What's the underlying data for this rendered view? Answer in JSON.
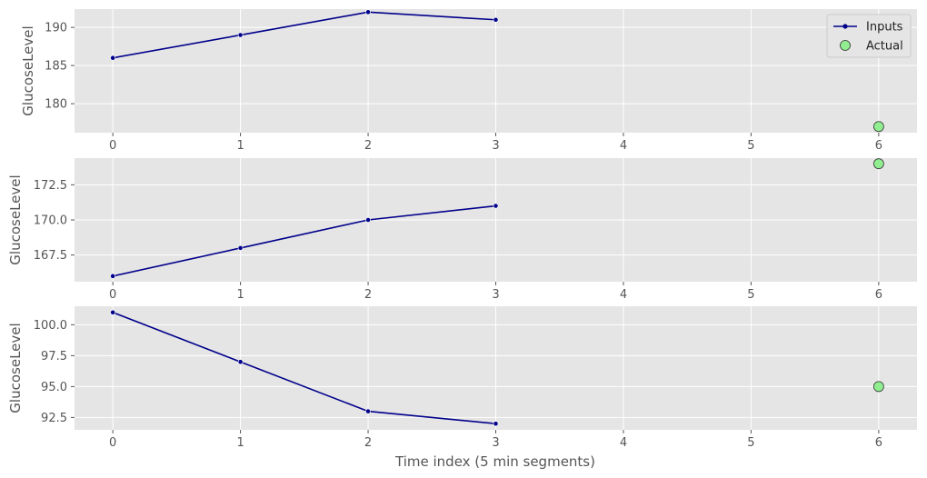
{
  "chart_data": {
    "type": "line",
    "xlabel": "Time index (5 min segments)",
    "xlim": [
      -0.3,
      6.3
    ],
    "x_ticks": [
      0,
      1,
      2,
      3,
      4,
      5,
      6
    ],
    "legend": {
      "placement": "top-right",
      "entries": [
        {
          "label": "Inputs",
          "kind": "line-marker"
        },
        {
          "label": "Actual",
          "kind": "scatter"
        }
      ]
    },
    "colors": {
      "plot_bg": "#e5e5e5",
      "grid": "#ffffff",
      "inputs_line": "#00008b",
      "actual_fill": "#90ee90",
      "actual_edge": "#333333"
    },
    "grid": true,
    "panels": [
      {
        "ylabel": "GlucoseLevel",
        "ylim": [
          176.2,
          192.4
        ],
        "y_ticks": [
          180,
          185,
          190
        ],
        "inputs": {
          "x": [
            0,
            1,
            2,
            3
          ],
          "y": [
            186,
            189,
            192,
            191
          ]
        },
        "actual": {
          "x": [
            6
          ],
          "y": [
            177
          ]
        }
      },
      {
        "ylabel": "GlucoseLevel",
        "ylim": [
          165.6,
          174.4
        ],
        "y_ticks": [
          167.5,
          170.0,
          172.5
        ],
        "inputs": {
          "x": [
            0,
            1,
            2,
            3
          ],
          "y": [
            166,
            168,
            170,
            171
          ]
        },
        "actual": {
          "x": [
            6
          ],
          "y": [
            174
          ]
        }
      },
      {
        "ylabel": "GlucoseLevel",
        "ylim": [
          91.5,
          101.5
        ],
        "y_ticks": [
          92.5,
          95.0,
          97.5,
          100.0
        ],
        "inputs": {
          "x": [
            0,
            1,
            2,
            3
          ],
          "y": [
            101,
            97,
            93,
            92
          ]
        },
        "actual": {
          "x": [
            6
          ],
          "y": [
            95
          ]
        }
      }
    ]
  }
}
